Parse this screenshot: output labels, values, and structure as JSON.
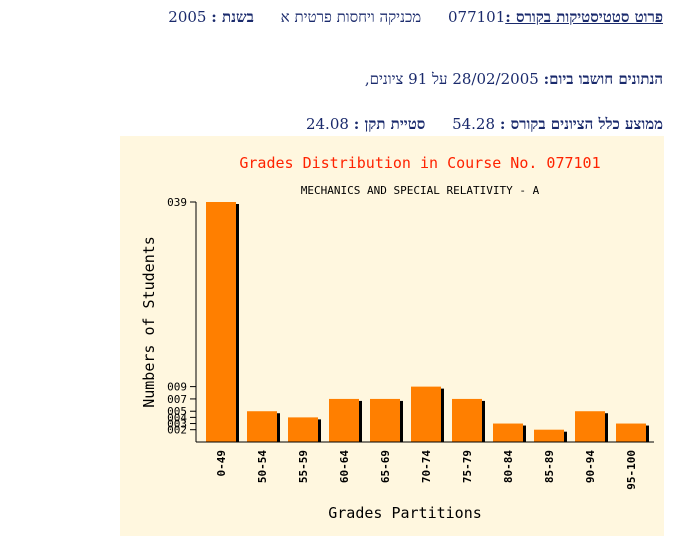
{
  "header": {
    "label_course_stats": "פרוט סטטיסטיקות בקורס :",
    "course_number": "077101",
    "course_name": "מכניקה ויחסות פרטית א",
    "label_year": "בשנת :",
    "year": "2005",
    "label_computed_on": "הנתונים חושבו ביום:",
    "computed_date": "28/02/2005",
    "grades_count_text": "על 91 ציונים,",
    "label_mean": "ממוצע כלל הציונים בקורס :",
    "mean": "54.28",
    "label_std": "סטיית תקן :",
    "std": "24.08"
  },
  "colors": {
    "bar": "#ff7f00",
    "title": "#ff2200",
    "background": "#fff7df",
    "text": "#1a2a6c"
  },
  "chart_data": {
    "type": "bar",
    "title": "Grades Distribution in Course No. 077101",
    "subtitle": "MECHANICS AND SPECIAL RELATIVITY - A",
    "xlabel": "Grades Partitions",
    "ylabel": "Numbers of Students",
    "categories": [
      "0-49",
      "50-54",
      "55-59",
      "60-64",
      "65-69",
      "70-74",
      "75-79",
      "80-84",
      "85-89",
      "90-94",
      "95-100"
    ],
    "values": [
      39,
      5,
      4,
      7,
      7,
      9,
      7,
      3,
      2,
      5,
      3
    ],
    "ytick_labels": [
      "039",
      "009",
      "007",
      "005",
      "004",
      "003",
      "002"
    ],
    "ytick_values": [
      39,
      9,
      7,
      5,
      4,
      3,
      2
    ],
    "ylim": [
      0,
      39
    ]
  }
}
